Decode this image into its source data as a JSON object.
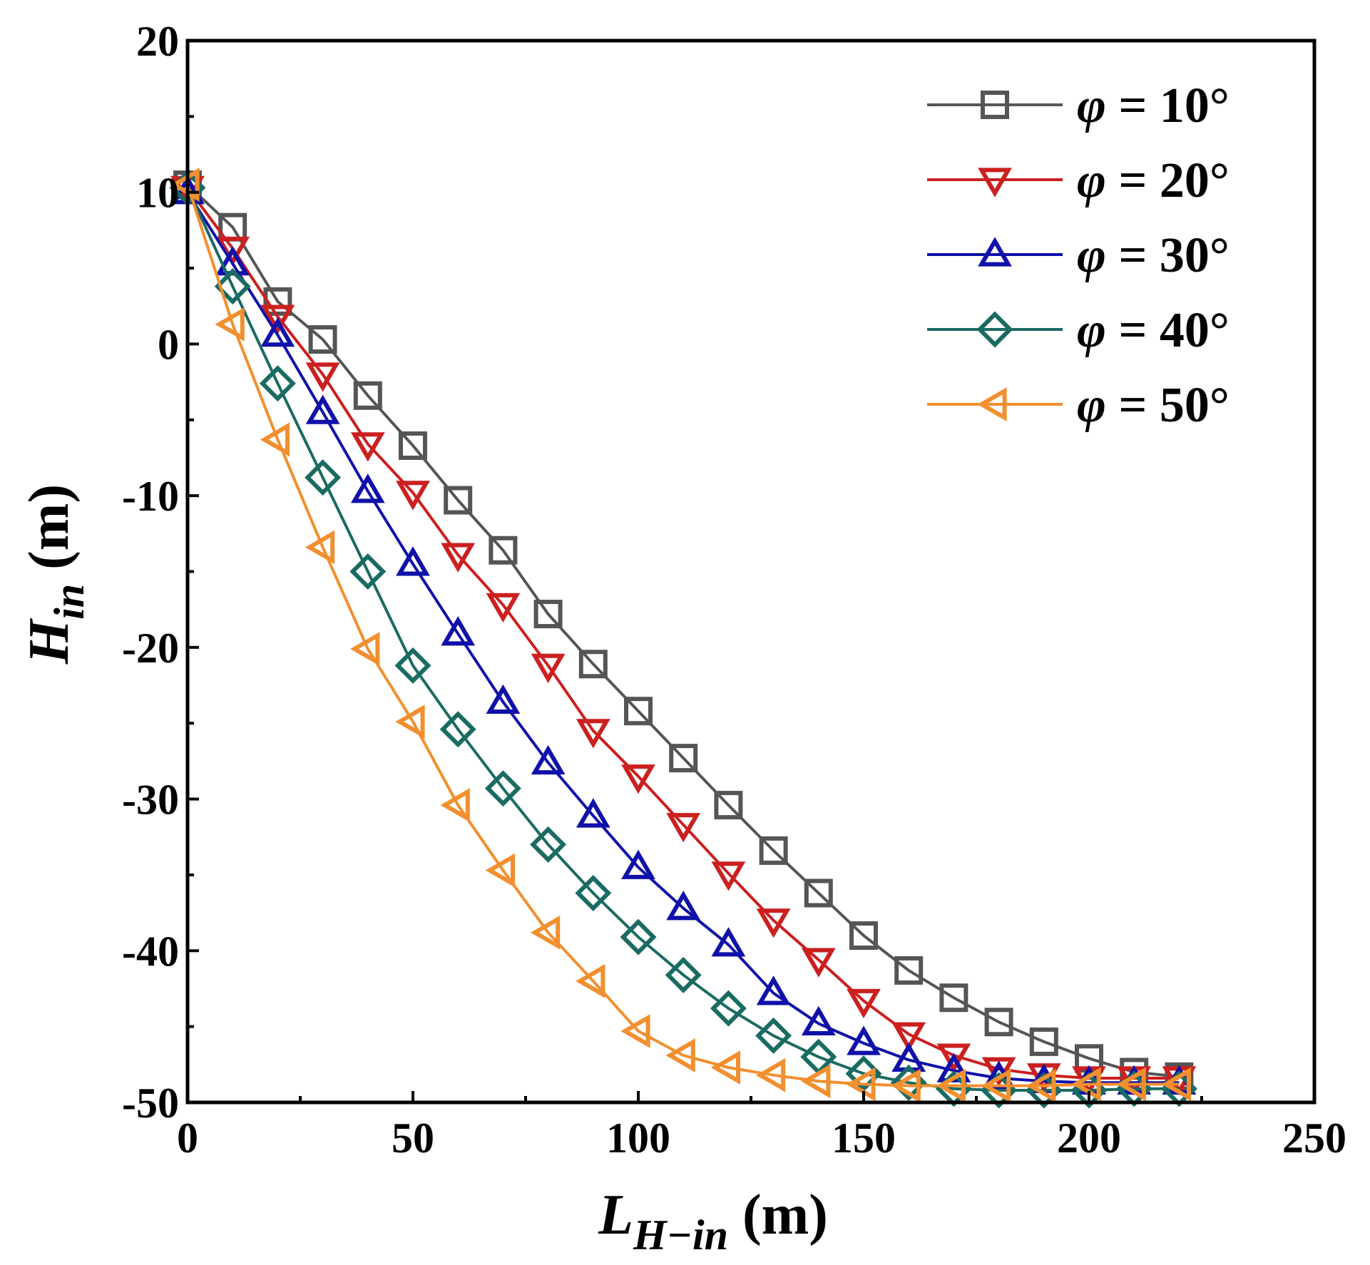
{
  "chart_data": {
    "type": "line",
    "title": "",
    "xlabel": {
      "main": "L",
      "sub": "H−in",
      "unit": "(m)"
    },
    "ylabel": {
      "main": "H",
      "sub": "in",
      "unit": "(m)"
    },
    "xlim": [
      0,
      250
    ],
    "ylim": [
      -50,
      20
    ],
    "xticks": [
      0,
      50,
      100,
      150,
      200,
      250
    ],
    "yticks": [
      20,
      10,
      0,
      -10,
      -20,
      -30,
      -40,
      -50
    ],
    "xtick_labels": [
      "0",
      "50",
      "100",
      "150",
      "200",
      "250"
    ],
    "ytick_labels": [
      "20",
      "10",
      "0",
      "-10",
      "-20",
      "-30",
      "-40",
      "-50"
    ],
    "grid": false,
    "legend_position": "top-right",
    "series": [
      {
        "name": "φ = 10°",
        "legend_symbol": "φ",
        "legend_text": " = 10°",
        "color": "#555555",
        "marker": "square",
        "x": [
          0,
          10,
          20,
          30,
          40,
          50,
          60,
          70,
          80,
          90,
          100,
          110,
          120,
          130,
          140,
          150,
          160,
          170,
          180,
          190,
          200,
          210,
          220
        ],
        "y": [
          10.5,
          7.7,
          2.8,
          0.3,
          -3.4,
          -6.7,
          -10.3,
          -13.6,
          -17.8,
          -21.1,
          -24.2,
          -27.3,
          -30.4,
          -33.4,
          -36.2,
          -39.0,
          -41.3,
          -43.1,
          -44.7,
          -46.0,
          -47.1,
          -48.0,
          -48.3
        ]
      },
      {
        "name": "φ = 20°",
        "legend_symbol": "φ",
        "legend_text": " = 20°",
        "color": "#cc1f1f",
        "marker": "triangle-down",
        "x": [
          0,
          10,
          20,
          30,
          40,
          50,
          60,
          70,
          80,
          90,
          100,
          110,
          120,
          130,
          140,
          150,
          160,
          170,
          180,
          190,
          200,
          210,
          220
        ],
        "y": [
          10.3,
          6.3,
          1.8,
          -2.0,
          -6.6,
          -9.8,
          -13.9,
          -17.2,
          -21.2,
          -25.5,
          -28.5,
          -31.7,
          -34.9,
          -38.0,
          -40.6,
          -43.3,
          -45.5,
          -46.9,
          -47.8,
          -48.2,
          -48.4,
          -48.4,
          -48.4
        ]
      },
      {
        "name": "φ = 30°",
        "legend_symbol": "φ",
        "legend_text": " = 30°",
        "color": "#1010aa",
        "marker": "triangle-up",
        "x": [
          0,
          10,
          20,
          30,
          40,
          50,
          60,
          70,
          80,
          90,
          100,
          110,
          120,
          130,
          140,
          150,
          160,
          170,
          180,
          190,
          200,
          210,
          220
        ],
        "y": [
          10.0,
          5.3,
          0.6,
          -4.5,
          -9.7,
          -14.5,
          -19.1,
          -23.6,
          -27.6,
          -31.1,
          -34.5,
          -37.2,
          -39.6,
          -42.8,
          -44.8,
          -46.1,
          -47.2,
          -47.9,
          -48.4,
          -48.6,
          -48.7,
          -48.7,
          -48.7
        ]
      },
      {
        "name": "φ = 40°",
        "legend_symbol": "φ",
        "legend_text": " = 40°",
        "color": "#1a6b62",
        "marker": "diamond",
        "x": [
          0,
          10,
          20,
          30,
          40,
          50,
          60,
          70,
          80,
          90,
          100,
          110,
          120,
          130,
          140,
          150,
          160,
          170,
          180,
          190,
          200,
          210,
          220
        ],
        "y": [
          10.3,
          3.8,
          -2.6,
          -8.8,
          -15.0,
          -21.2,
          -25.4,
          -29.3,
          -33.0,
          -36.2,
          -39.1,
          -41.6,
          -43.8,
          -45.6,
          -47.0,
          -48.1,
          -48.7,
          -49.1,
          -49.2,
          -49.2,
          -49.2,
          -49.1,
          -49.1
        ]
      },
      {
        "name": "φ = 50°",
        "legend_symbol": "φ",
        "legend_text": " = 50°",
        "color": "#f28f2e",
        "marker": "triangle-left",
        "x": [
          0,
          10,
          20,
          30,
          40,
          50,
          60,
          70,
          80,
          90,
          100,
          110,
          120,
          130,
          140,
          150,
          160,
          170,
          180,
          190,
          200,
          210,
          220
        ],
        "y": [
          10.5,
          1.3,
          -6.3,
          -13.4,
          -20.1,
          -24.9,
          -30.4,
          -34.7,
          -38.8,
          -42.0,
          -45.3,
          -46.9,
          -47.7,
          -48.2,
          -48.6,
          -48.8,
          -48.9,
          -48.9,
          -48.9,
          -48.9,
          -48.8,
          -48.8,
          -48.8
        ]
      }
    ]
  }
}
